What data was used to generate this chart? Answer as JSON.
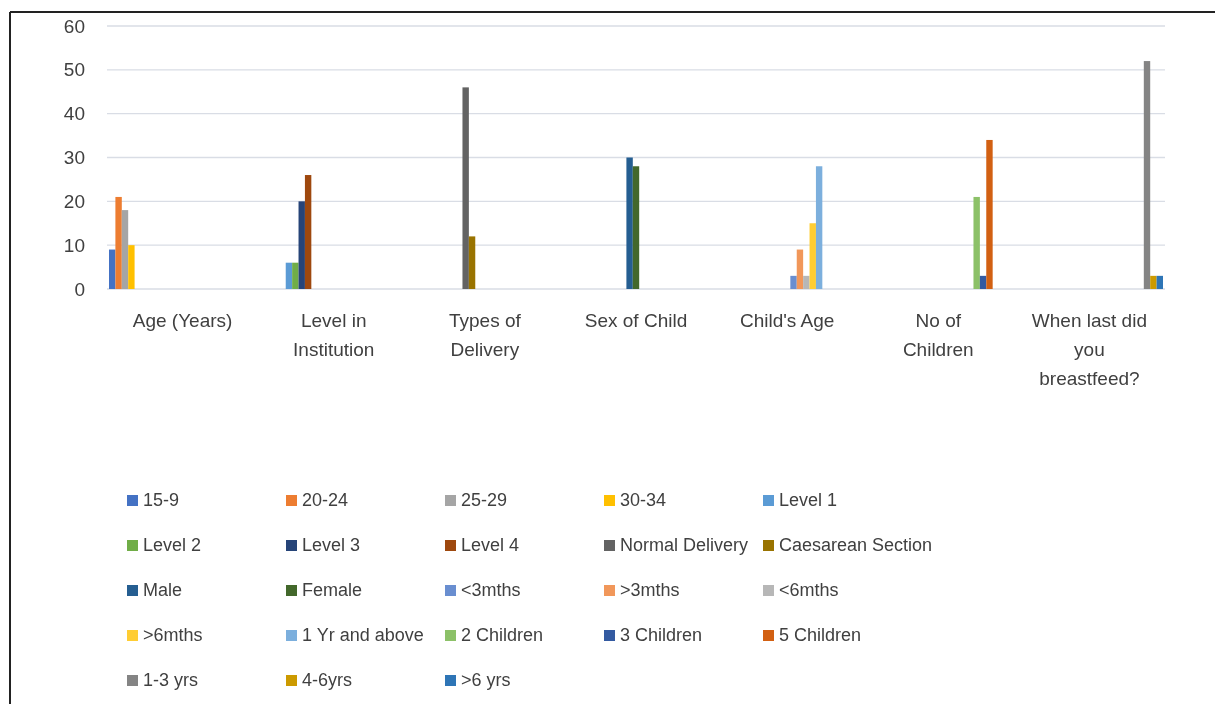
{
  "chart_data": {
    "type": "bar",
    "categories": [
      "Age (Years)",
      "Level in Institution",
      "Types of Delivery",
      "Sex of Child",
      "Child's Age",
      "No of Children",
      "When last did you breastfeed?"
    ],
    "ylim": [
      0,
      60
    ],
    "yticks": [
      0,
      10,
      20,
      30,
      40,
      50,
      60
    ],
    "grid": "y",
    "legend": "bottom",
    "series": [
      {
        "name": "15-9",
        "color": "#4472c4",
        "values": [
          9,
          null,
          null,
          null,
          null,
          null,
          null
        ]
      },
      {
        "name": "20-24",
        "color": "#ed7d31",
        "values": [
          21,
          null,
          null,
          null,
          null,
          null,
          null
        ]
      },
      {
        "name": "25-29",
        "color": "#a5a5a5",
        "values": [
          18,
          null,
          null,
          null,
          null,
          null,
          null
        ]
      },
      {
        "name": "30-34",
        "color": "#ffc000",
        "values": [
          10,
          null,
          null,
          null,
          null,
          null,
          null
        ]
      },
      {
        "name": "Level 1",
        "color": "#5b9bd5",
        "values": [
          null,
          6,
          null,
          null,
          null,
          null,
          null
        ]
      },
      {
        "name": "Level 2",
        "color": "#70ad47",
        "values": [
          null,
          6,
          null,
          null,
          null,
          null,
          null
        ]
      },
      {
        "name": "Level 3",
        "color": "#264478",
        "values": [
          null,
          20,
          null,
          null,
          null,
          null,
          null
        ]
      },
      {
        "name": "Level 4",
        "color": "#9e480e",
        "values": [
          null,
          26,
          null,
          null,
          null,
          null,
          null
        ]
      },
      {
        "name": "Normal Delivery",
        "color": "#636363",
        "values": [
          null,
          null,
          46,
          null,
          null,
          null,
          null
        ]
      },
      {
        "name": "Caesarean Section",
        "color": "#997300",
        "values": [
          null,
          null,
          12,
          null,
          null,
          null,
          null
        ]
      },
      {
        "name": "Male",
        "color": "#255e91",
        "values": [
          null,
          null,
          null,
          30,
          null,
          null,
          null
        ]
      },
      {
        "name": "Female",
        "color": "#43682b",
        "values": [
          null,
          null,
          null,
          28,
          null,
          null,
          null
        ]
      },
      {
        "name": "<3mths",
        "color": "#698ed0",
        "values": [
          null,
          null,
          null,
          null,
          3,
          null,
          null
        ]
      },
      {
        "name": ">3mths",
        "color": "#f1975a",
        "values": [
          null,
          null,
          null,
          null,
          9,
          null,
          null
        ]
      },
      {
        "name": "<6mths",
        "color": "#b7b7b7",
        "values": [
          null,
          null,
          null,
          null,
          3,
          null,
          null
        ]
      },
      {
        "name": ">6mths",
        "color": "#ffcd33",
        "values": [
          null,
          null,
          null,
          null,
          15,
          null,
          null
        ]
      },
      {
        "name": "1 Yr and above",
        "color": "#7cafdd",
        "values": [
          null,
          null,
          null,
          null,
          28,
          null,
          null
        ]
      },
      {
        "name": "2 Children",
        "color": "#8cc168",
        "values": [
          null,
          null,
          null,
          null,
          null,
          21,
          null
        ]
      },
      {
        "name": "3 Children",
        "color": "#335aa1",
        "values": [
          null,
          null,
          null,
          null,
          null,
          3,
          null
        ]
      },
      {
        "name": "5 Children",
        "color": "#d26012",
        "values": [
          null,
          null,
          null,
          null,
          null,
          34,
          null
        ]
      },
      {
        "name": "1-3 yrs",
        "color": "#848484",
        "values": [
          null,
          null,
          null,
          null,
          null,
          null,
          52
        ]
      },
      {
        "name": "4-6yrs",
        "color": "#cc9a00",
        "values": [
          null,
          null,
          null,
          null,
          null,
          null,
          3
        ]
      },
      {
        "name": ">6 yrs",
        "color": "#2e75b6",
        "values": [
          null,
          null,
          null,
          null,
          null,
          null,
          3
        ]
      }
    ]
  }
}
